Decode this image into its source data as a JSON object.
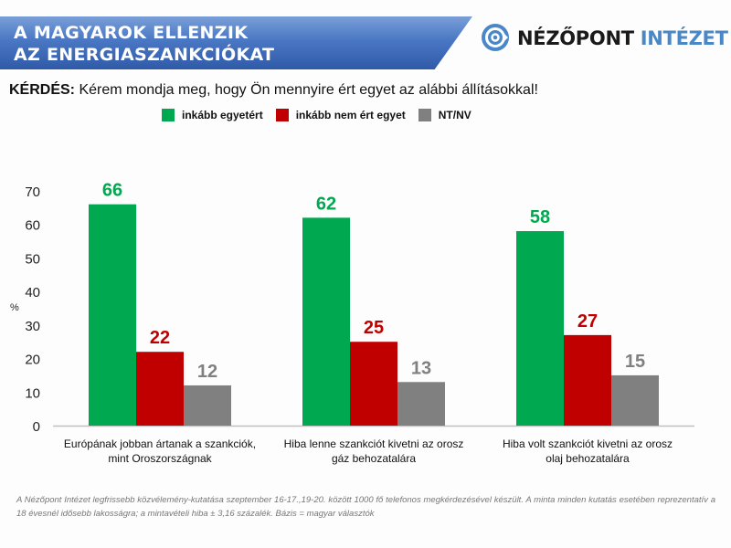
{
  "header": {
    "title_line1": "A MAGYAROK ELLENZIK",
    "title_line2": "AZ ENERGIASZANKCIÓKAT",
    "logo_icon": "nezopont-logo-icon",
    "logo_text_dark": "NÉZŐPONT",
    "logo_text_blue": "INTÉZET"
  },
  "question": {
    "label": "KÉRDÉS:",
    "text": "Kérem mondja meg, hogy Ön mennyire ért egyet az alábbi állításokkal!"
  },
  "colors": {
    "agree": "#00a84f",
    "disagree": "#c00000",
    "dk": "#808080",
    "axis": "#bfbfbf"
  },
  "chart_data": {
    "type": "bar",
    "title": "A MAGYAROK ELLENZIK AZ ENERGIASZANKCIÓKAT",
    "ylabel": "%",
    "xlabel": "",
    "ylim": [
      0,
      70
    ],
    "yticks": [
      0,
      10,
      20,
      30,
      40,
      50,
      60,
      70
    ],
    "grid": false,
    "legend_position": "top",
    "categories": [
      [
        "Európának jobban ártanak a szankciók,",
        "mint Oroszországnak"
      ],
      [
        "Hiba lenne szankciót kivetni az orosz",
        "gáz behozatalára"
      ],
      [
        "Hiba volt szankciót kivetni az orosz",
        "olaj behozatalára"
      ]
    ],
    "series": [
      {
        "name": "inkább egyetért",
        "color_key": "agree",
        "values": [
          66,
          62,
          58
        ]
      },
      {
        "name": "inkább nem ért egyet",
        "color_key": "disagree",
        "values": [
          22,
          25,
          27
        ]
      },
      {
        "name": "NT/NV",
        "color_key": "dk",
        "values": [
          12,
          13,
          15
        ]
      }
    ]
  },
  "footnote": "A Nézőpont Intézet legfrissebb közvélemény-kutatása szeptember 16-17.,19-20. között 1000 fő telefonos megkérdezésével készült. A minta minden kutatás esetében reprezentatív a 18 évesnél idősebb lakosságra; a mintavételi hiba ± 3,16 százalék. Bázis = magyar választók"
}
